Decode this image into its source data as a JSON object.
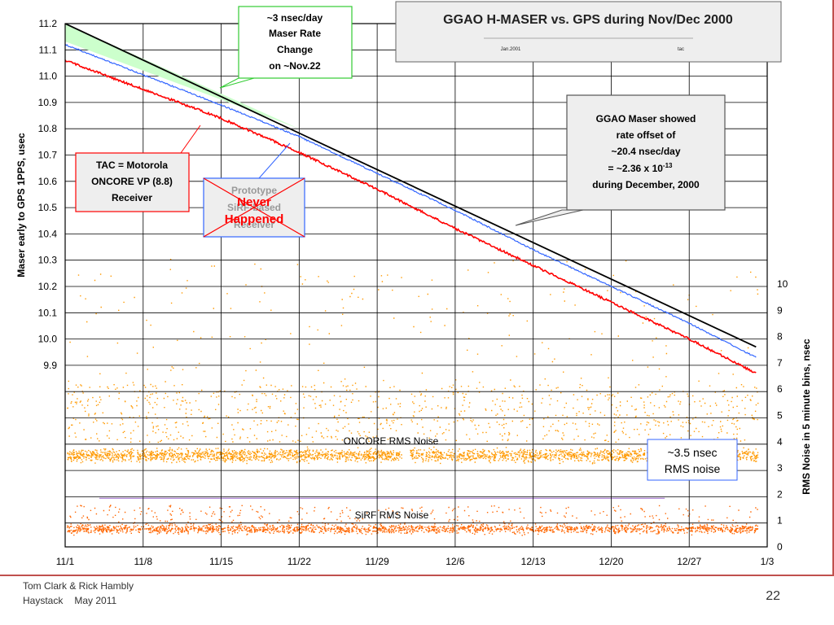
{
  "footer": {
    "author": "Tom Clark & Rick Hambly",
    "org": "Haystack",
    "date": "May 2011",
    "page": "22"
  },
  "chart_data": {
    "type": "line",
    "title": "GGAO H-MASER vs. GPS during Nov/Dec 2000",
    "subtitle_left": "Jan.2001",
    "subtitle_right": "tac",
    "xlabel": "",
    "ylabel_left": "Maser early to GPS 1PPS, usec",
    "ylabel_right": "RMS Noise in 5 minute bins, nsec",
    "x_ticks": [
      "11/1",
      "11/8",
      "11/15",
      "11/22",
      "11/29",
      "12/6",
      "12/13",
      "12/20",
      "12/27",
      "1/3"
    ],
    "y_left_ticks": [
      "11.2",
      "11.1",
      "11.0",
      "10.9",
      "10.8",
      "10.7",
      "10.6",
      "10.5",
      "10.4",
      "10.3",
      "10.2",
      "10.1",
      "10.0",
      "9.9"
    ],
    "y_left_range": [
      9.9,
      11.2
    ],
    "y_right_ticks": [
      "0",
      "1",
      "2",
      "3",
      "4",
      "5",
      "6",
      "7",
      "8",
      "9",
      "10"
    ],
    "y_right_range": [
      0,
      10
    ],
    "grid": true,
    "series": [
      {
        "name": "",
        "color": "#000000",
        "points": [
          [
            "11/1",
            11.2
          ],
          [
            "1/2",
            9.97
          ]
        ]
      },
      {
        "name": "TAC = Motorola ONCORE VP (8.8) Receiver",
        "color": "#ff0000",
        "points": [
          [
            "11/1",
            11.06
          ],
          [
            "11/15",
            10.84
          ],
          [
            "11/22",
            10.71
          ],
          [
            "11/29",
            10.57
          ],
          [
            "12/6",
            10.42
          ],
          [
            "12/13",
            10.28
          ],
          [
            "12/20",
            10.14
          ],
          [
            "12/27",
            10.0
          ],
          [
            "1/2",
            9.87
          ]
        ]
      },
      {
        "name": "Prototype SiRF-based Receiver",
        "color": "#3366ff",
        "points": [
          [
            "11/1",
            11.12
          ],
          [
            "11/15",
            10.89
          ],
          [
            "11/22",
            10.77
          ],
          [
            "11/29",
            10.63
          ],
          [
            "12/6",
            10.49
          ],
          [
            "12/13",
            10.34
          ],
          [
            "12/20",
            10.2
          ],
          [
            "12/27",
            10.06
          ],
          [
            "1/2",
            9.93
          ]
        ]
      },
      {
        "name": "ONCORE RMS Noise",
        "color": "#ff9900",
        "mean_nsec": 3.5
      },
      {
        "name": "SiRF RMS Noise",
        "color": "#ff6600",
        "mean_nsec": 0.7
      }
    ],
    "annotations": {
      "rate_change": [
        "~3 nsec/day",
        "Maser Rate",
        "Change",
        "on ~Nov.22"
      ],
      "tac": [
        "TAC = Motorola",
        "ONCORE VP (8.8)",
        "Receiver"
      ],
      "prototype": [
        "Prototype",
        "SiRF-based",
        "Receiver"
      ],
      "never": [
        "Never",
        "Happened"
      ],
      "maser": [
        "GGAO Maser showed",
        "rate offset of",
        "~20.4 nsec/day",
        "= ~2.36 x 10",
        "-13",
        "during December, 2000"
      ],
      "rms": [
        "~3.5 nsec",
        "RMS noise"
      ],
      "oncore_label": "ONCORE RMS Noise",
      "sirf_label": "SiRF RMS Noise"
    }
  }
}
